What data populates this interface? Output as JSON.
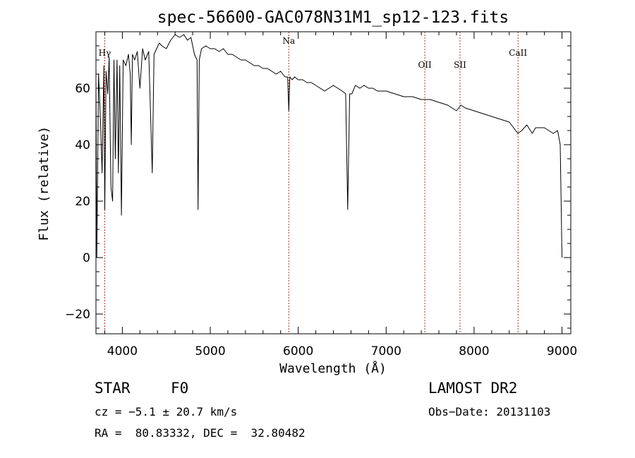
{
  "chart_data": {
    "type": "line",
    "title": "spec-56600-GAC078N31M1_sp12-123.fits",
    "xlabel": "Wavelength (Å)",
    "ylabel": "Flux (relative)",
    "xlim": [
      3700,
      9100
    ],
    "ylim": [
      -27,
      80
    ],
    "x_ticks": [
      4000,
      5000,
      6000,
      7000,
      8000,
      9000
    ],
    "x_tick_labels": [
      "4000",
      "5000",
      "6000",
      "7000",
      "8000",
      "9000"
    ],
    "y_ticks": [
      -20,
      0,
      20,
      40,
      60
    ],
    "y_tick_labels": [
      "−20",
      "0",
      "20",
      "40",
      "60"
    ],
    "grid": false,
    "series": [
      {
        "name": "",
        "x": [
          3700,
          3710,
          3730,
          3750,
          3770,
          3790,
          3800,
          3815,
          3835,
          3850,
          3870,
          3889,
          3905,
          3920,
          3940,
          3955,
          3970,
          3990,
          4010,
          4040,
          4070,
          4090,
          4102,
          4115,
          4140,
          4170,
          4200,
          4230,
          4260,
          4300,
          4340,
          4360,
          4390,
          4420,
          4450,
          4500,
          4550,
          4600,
          4650,
          4700,
          4740,
          4780,
          4820,
          4850,
          4861,
          4875,
          4900,
          4950,
          5000,
          5050,
          5100,
          5150,
          5200,
          5250,
          5300,
          5350,
          5400,
          5450,
          5500,
          5550,
          5600,
          5650,
          5700,
          5750,
          5800,
          5850,
          5880,
          5893,
          5905,
          5930,
          5960,
          6000,
          6050,
          6100,
          6150,
          6200,
          6250,
          6300,
          6350,
          6400,
          6450,
          6500,
          6540,
          6563,
          6585,
          6610,
          6650,
          6700,
          6750,
          6800,
          6850,
          6900,
          6950,
          7000,
          7100,
          7200,
          7300,
          7400,
          7500,
          7600,
          7700,
          7800,
          7850,
          7900,
          8000,
          8100,
          8200,
          8300,
          8400,
          8498,
          8542,
          8600,
          8662,
          8700,
          8800,
          8850,
          8900,
          8950,
          8980,
          8990,
          9000
        ],
        "y": [
          62,
          0,
          65,
          50,
          30,
          68,
          17,
          66,
          58,
          71,
          25,
          20,
          70,
          35,
          70,
          30,
          68,
          15,
          70,
          68,
          72,
          65,
          40,
          72,
          70,
          73,
          60,
          74,
          70,
          73,
          30,
          72,
          74,
          76,
          75,
          74,
          77,
          79,
          78,
          79,
          77,
          78,
          72,
          70,
          17,
          70,
          74,
          75,
          74,
          74,
          73,
          74,
          72,
          72,
          71,
          70,
          70,
          69,
          68,
          68,
          67,
          67,
          66,
          65,
          66,
          64,
          64,
          52,
          64,
          63,
          64,
          63,
          63,
          62,
          62,
          61,
          60,
          59,
          60,
          61,
          60,
          59,
          58,
          17,
          58,
          58,
          61,
          60,
          61,
          60,
          60,
          59,
          59,
          59,
          58,
          57,
          57,
          56,
          56,
          55,
          54,
          52,
          54,
          53,
          52,
          51,
          50,
          49,
          48,
          44,
          45,
          47,
          44,
          46,
          46,
          45,
          44,
          45,
          40,
          20,
          0
        ]
      }
    ],
    "annotations": [
      {
        "label": "Hγ",
        "x": 3800
      },
      {
        "label": "Na",
        "x": 5893
      },
      {
        "label": "OII",
        "x": 7440
      },
      {
        "label": "SII",
        "x": 7840
      },
      {
        "label": "CaII",
        "x": 8500
      }
    ],
    "annotation_color": "#b03030"
  },
  "info": {
    "object_class": "STAR",
    "subclass": "F0",
    "survey": "LAMOST DR2",
    "cz": "cz = −5.1 ± 20.7 km/s",
    "obs_date": "Obs−Date: 20131103",
    "coords": "RA =  80.83332, DEC =  32.80482"
  }
}
